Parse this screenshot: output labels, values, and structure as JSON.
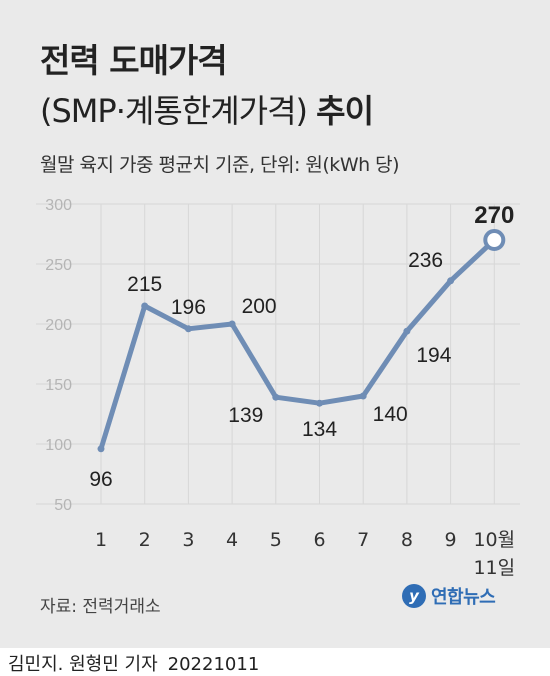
{
  "title_line1": "전력 도매가격",
  "title_line2_light": "(SMP·계통한계가격)",
  "title_line2_bold": "추이",
  "subtitle": "월말 육지 가중 평균치 기준, 단위: 원(kWh 당)",
  "source": "자료: 전력거래소",
  "logo_text": "연합뉴스",
  "byline": "김민지. 원형민 기자",
  "date": "20221011",
  "colors": {
    "line": "#6f8db5",
    "background": "#eaeaea",
    "grid": "#d7d7d7"
  },
  "chart_data": {
    "type": "line",
    "categories": [
      "1",
      "2",
      "3",
      "4",
      "5",
      "6",
      "7",
      "8",
      "9",
      "10월\n11일"
    ],
    "values": [
      96,
      215,
      196,
      200,
      139,
      134,
      140,
      194,
      236,
      270
    ],
    "ylim": [
      50,
      300
    ],
    "yticks": [
      "300",
      "250",
      "200",
      "150",
      "100",
      "50"
    ],
    "grid": true,
    "highlight_last": true
  }
}
